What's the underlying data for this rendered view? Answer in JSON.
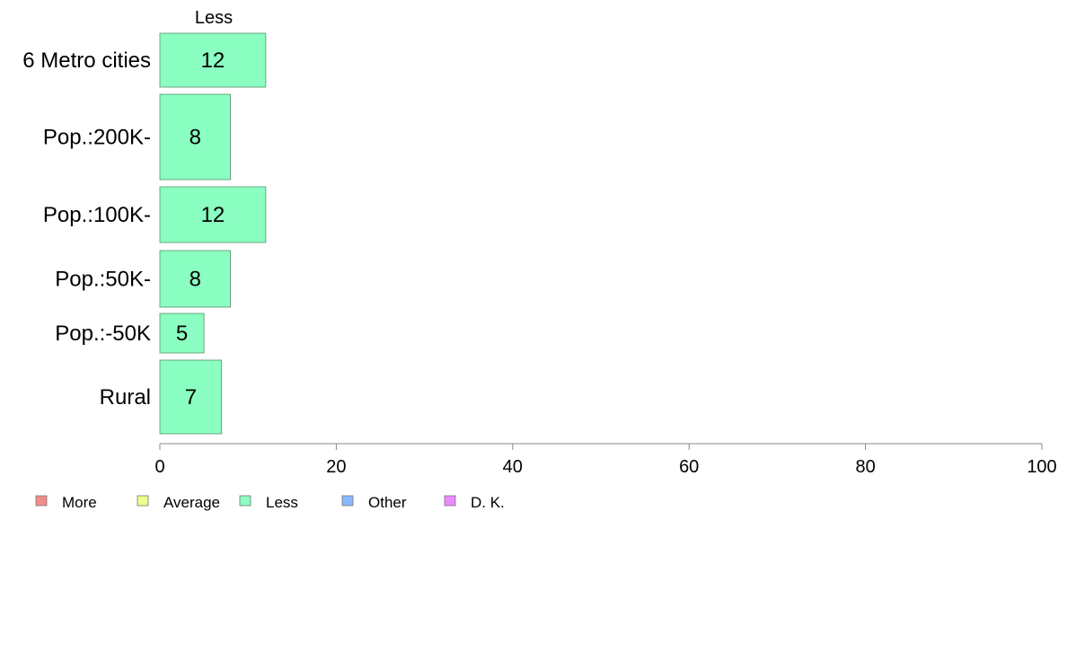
{
  "chart_data": {
    "type": "bar",
    "orientation": "horizontal",
    "series_title": "Less",
    "categories": [
      "6 Metro cities",
      "Pop.:200K-",
      "Pop.:100K-",
      "Pop.:50K-",
      "Pop.:-50K",
      "Rural"
    ],
    "series": [
      {
        "name": "Less",
        "values": [
          12,
          8,
          12,
          8,
          5,
          7
        ],
        "color": "#8affc1"
      }
    ],
    "xlim": [
      0,
      100
    ],
    "xticks": [
      "0",
      "20",
      "40",
      "60",
      "80",
      "100"
    ],
    "grid": false,
    "legend_position": "bottom-left",
    "legend": [
      {
        "label": "More",
        "color": "#f48a8a"
      },
      {
        "label": "Average",
        "color": "#eeff8a"
      },
      {
        "label": "Less",
        "color": "#8affc1"
      },
      {
        "label": "Other",
        "color": "#8ab8ff"
      },
      {
        "label": "D. K.",
        "color": "#ee8aff"
      }
    ]
  }
}
